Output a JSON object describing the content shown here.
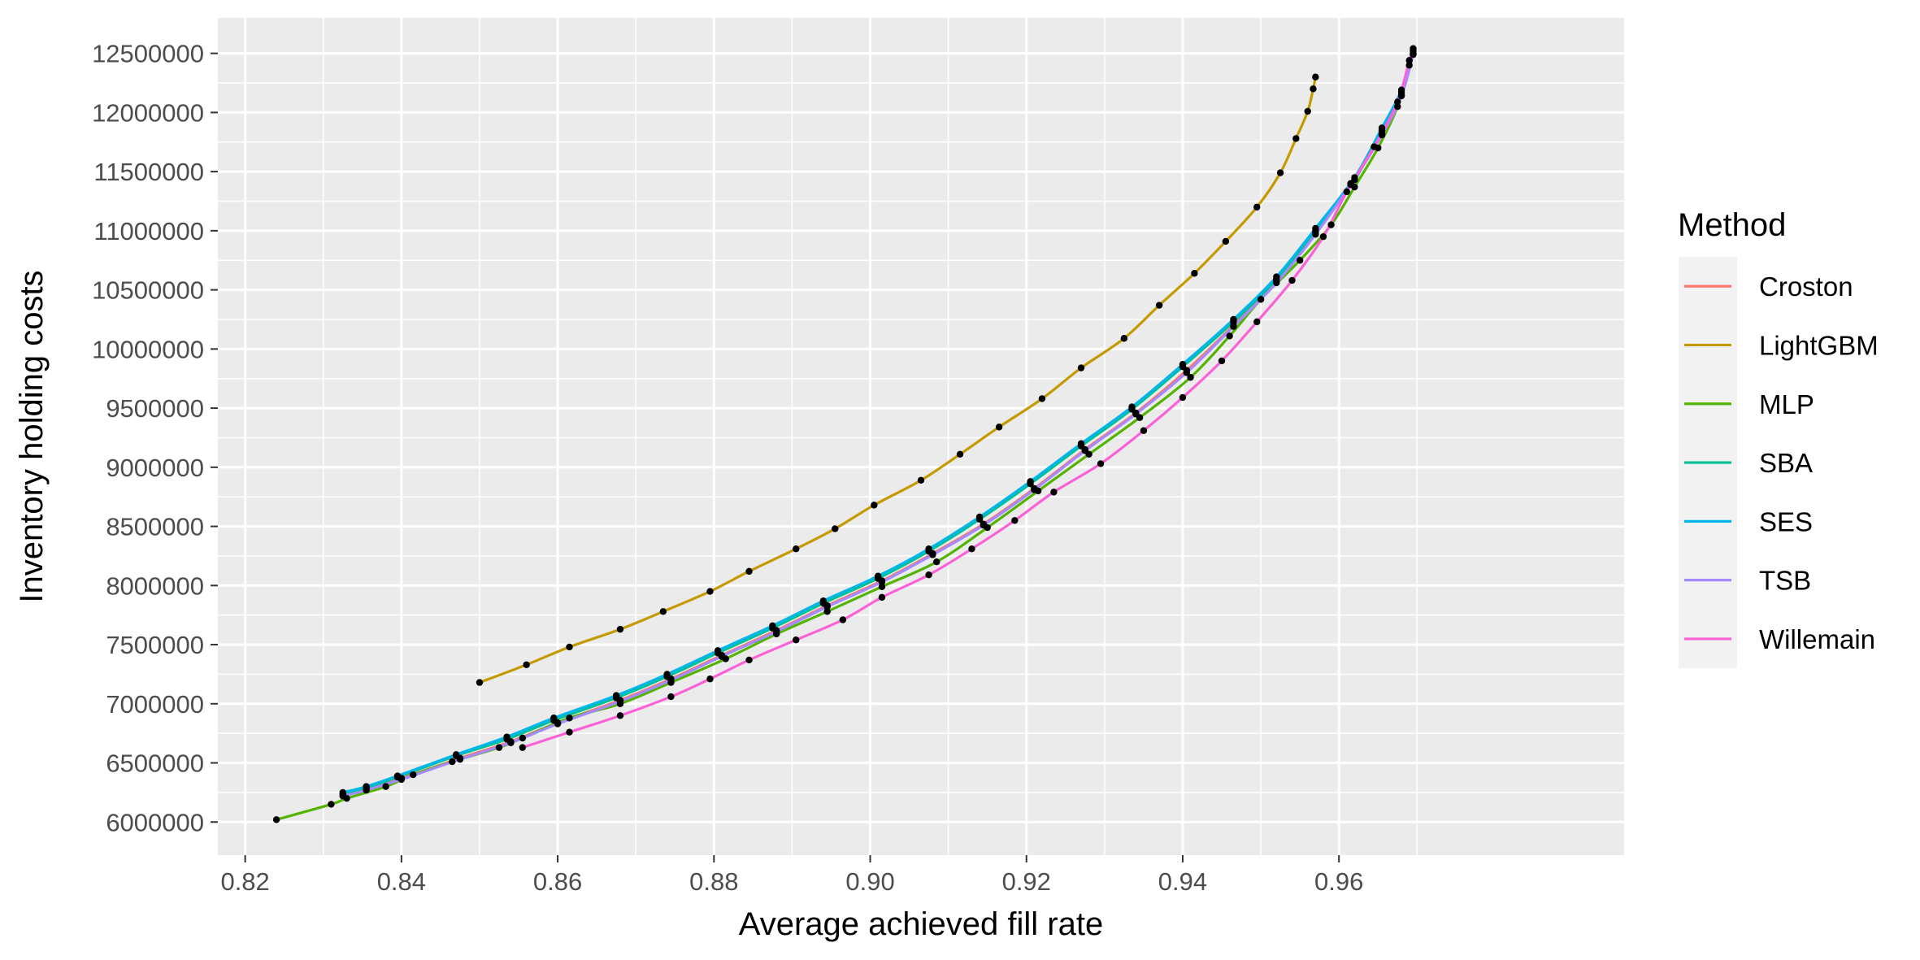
{
  "chart_data": {
    "type": "line",
    "xlabel": "Average achieved fill rate",
    "ylabel": "Inventory holding costs",
    "xlim": [
      0.8165,
      0.9965
    ],
    "ylim": [
      5720000,
      12800000
    ],
    "x_ticks": [
      0.82,
      0.84,
      0.86,
      0.88,
      0.9,
      0.92,
      0.94,
      0.96
    ],
    "x_tick_labels": [
      "0.82",
      "0.84",
      "0.86",
      "0.88",
      "0.90",
      "0.92",
      "0.94",
      "0.96"
    ],
    "y_ticks": [
      6000000,
      6500000,
      7000000,
      7500000,
      8000000,
      8500000,
      9000000,
      9500000,
      10000000,
      10500000,
      11000000,
      11500000,
      12000000,
      12500000
    ],
    "y_tick_labels": [
      "6000000",
      "6500000",
      "7000000",
      "7500000",
      "8000000",
      "8500000",
      "9000000",
      "9500000",
      "10000000",
      "10500000",
      "11000000",
      "11500000",
      "12000000",
      "12500000"
    ],
    "grid": true,
    "background": "#ebebeb",
    "legend": {
      "title": "Method",
      "placement": "right"
    },
    "series": [
      {
        "name": "Croston",
        "color": "#F8766D",
        "x": [
          0.8325,
          0.8355,
          0.84,
          0.8475,
          0.854,
          0.86,
          0.868,
          0.8745,
          0.881,
          0.888,
          0.8945,
          0.9015,
          0.908,
          0.9145,
          0.921,
          0.9275,
          0.934,
          0.9405,
          0.9465,
          0.952,
          0.957,
          0.9615,
          0.9655,
          0.968,
          0.9695
        ],
        "y": [
          6230000,
          6280000,
          6370000,
          6540000,
          6680000,
          6840000,
          7030000,
          7210000,
          7410000,
          7620000,
          7830000,
          8040000,
          8270000,
          8520000,
          8820000,
          9150000,
          9460000,
          9820000,
          10200000,
          10570000,
          10980000,
          11400000,
          11820000,
          12150000,
          12500000
        ]
      },
      {
        "name": "LightGBM",
        "color": "#C49A00",
        "x": [
          0.85,
          0.856,
          0.8615,
          0.868,
          0.8735,
          0.8795,
          0.8845,
          0.8905,
          0.8955,
          0.9005,
          0.9065,
          0.9115,
          0.9165,
          0.922,
          0.927,
          0.9325,
          0.937,
          0.9415,
          0.9455,
          0.9495,
          0.9525,
          0.9545,
          0.956,
          0.9567,
          0.957
        ],
        "y": [
          7180000,
          7330000,
          7480000,
          7630000,
          7780000,
          7950000,
          8120000,
          8310000,
          8480000,
          8680000,
          8890000,
          9110000,
          9340000,
          9580000,
          9840000,
          10090000,
          10370000,
          10640000,
          10910000,
          11200000,
          11490000,
          11780000,
          12010000,
          12200000,
          12300000
        ]
      },
      {
        "name": "MLP",
        "color": "#53B400",
        "x": [
          0.824,
          0.831,
          0.833,
          0.838,
          0.8415,
          0.8465,
          0.8525,
          0.8555,
          0.8615,
          0.868,
          0.8745,
          0.8815,
          0.888,
          0.8945,
          0.9015,
          0.9085,
          0.915,
          0.9215,
          0.928,
          0.9345,
          0.941,
          0.946,
          0.95,
          0.955,
          0.959,
          0.962,
          0.965,
          0.9675,
          0.969
        ],
        "y": [
          6020000,
          6150000,
          6200000,
          6300000,
          6400000,
          6510000,
          6630000,
          6710000,
          6880000,
          7000000,
          7180000,
          7380000,
          7590000,
          7780000,
          7990000,
          8200000,
          8490000,
          8800000,
          9110000,
          9420000,
          9760000,
          10110000,
          10420000,
          10750000,
          11050000,
          11370000,
          11700000,
          12050000,
          12400000
        ]
      },
      {
        "name": "SBA",
        "color": "#00C094",
        "x": [
          0.8325,
          0.8355,
          0.8395,
          0.847,
          0.8535,
          0.8595,
          0.8675,
          0.874,
          0.8805,
          0.8875,
          0.894,
          0.901,
          0.9075,
          0.914,
          0.9205,
          0.927,
          0.9335,
          0.94,
          0.9465,
          0.952,
          0.957,
          0.962,
          0.9655,
          0.968,
          0.9695
        ],
        "y": [
          6240000,
          6290000,
          6380000,
          6560000,
          6700000,
          6860000,
          7050000,
          7230000,
          7430000,
          7640000,
          7850000,
          8060000,
          8290000,
          8560000,
          8860000,
          9180000,
          9490000,
          9850000,
          10230000,
          10590000,
          11000000,
          11430000,
          11850000,
          12170000,
          12520000
        ]
      },
      {
        "name": "SES",
        "color": "#00B6EB",
        "x": [
          0.8325,
          0.8355,
          0.8395,
          0.847,
          0.8535,
          0.8595,
          0.8675,
          0.874,
          0.8805,
          0.8875,
          0.894,
          0.901,
          0.9075,
          0.914,
          0.9205,
          0.927,
          0.9335,
          0.94,
          0.9465,
          0.952,
          0.957,
          0.962,
          0.9655,
          0.968,
          0.9695
        ],
        "y": [
          6250000,
          6300000,
          6390000,
          6570000,
          6720000,
          6880000,
          7070000,
          7250000,
          7450000,
          7660000,
          7870000,
          8080000,
          8310000,
          8580000,
          8880000,
          9200000,
          9510000,
          9870000,
          10250000,
          10610000,
          11020000,
          11450000,
          11870000,
          12190000,
          12540000
        ]
      },
      {
        "name": "TSB",
        "color": "#A58AFF",
        "x": [
          0.8325,
          0.8355,
          0.84,
          0.8475,
          0.854,
          0.86,
          0.868,
          0.8745,
          0.881,
          0.888,
          0.8945,
          0.9015,
          0.908,
          0.9145,
          0.921,
          0.9275,
          0.934,
          0.9405,
          0.9465,
          0.952,
          0.957,
          0.9615,
          0.9655,
          0.968,
          0.9695
        ],
        "y": [
          6220000,
          6270000,
          6360000,
          6530000,
          6670000,
          6830000,
          7020000,
          7200000,
          7400000,
          7610000,
          7820000,
          8030000,
          8260000,
          8510000,
          8810000,
          9140000,
          9450000,
          9800000,
          10190000,
          10560000,
          10970000,
          11390000,
          11810000,
          12140000,
          12490000
        ]
      },
      {
        "name": "Willemain",
        "color": "#FB61D7",
        "x": [
          0.8555,
          0.8615,
          0.868,
          0.8745,
          0.8795,
          0.8845,
          0.8905,
          0.8965,
          0.9015,
          0.9075,
          0.913,
          0.9185,
          0.9235,
          0.9295,
          0.935,
          0.94,
          0.945,
          0.9495,
          0.954,
          0.958,
          0.961,
          0.9645,
          0.9675,
          0.969,
          0.9695
        ],
        "y": [
          6630000,
          6760000,
          6900000,
          7060000,
          7210000,
          7370000,
          7540000,
          7710000,
          7900000,
          8090000,
          8310000,
          8550000,
          8790000,
          9030000,
          9310000,
          9590000,
          9900000,
          10230000,
          10580000,
          10950000,
          11330000,
          11710000,
          12090000,
          12440000,
          12540000
        ]
      }
    ]
  }
}
